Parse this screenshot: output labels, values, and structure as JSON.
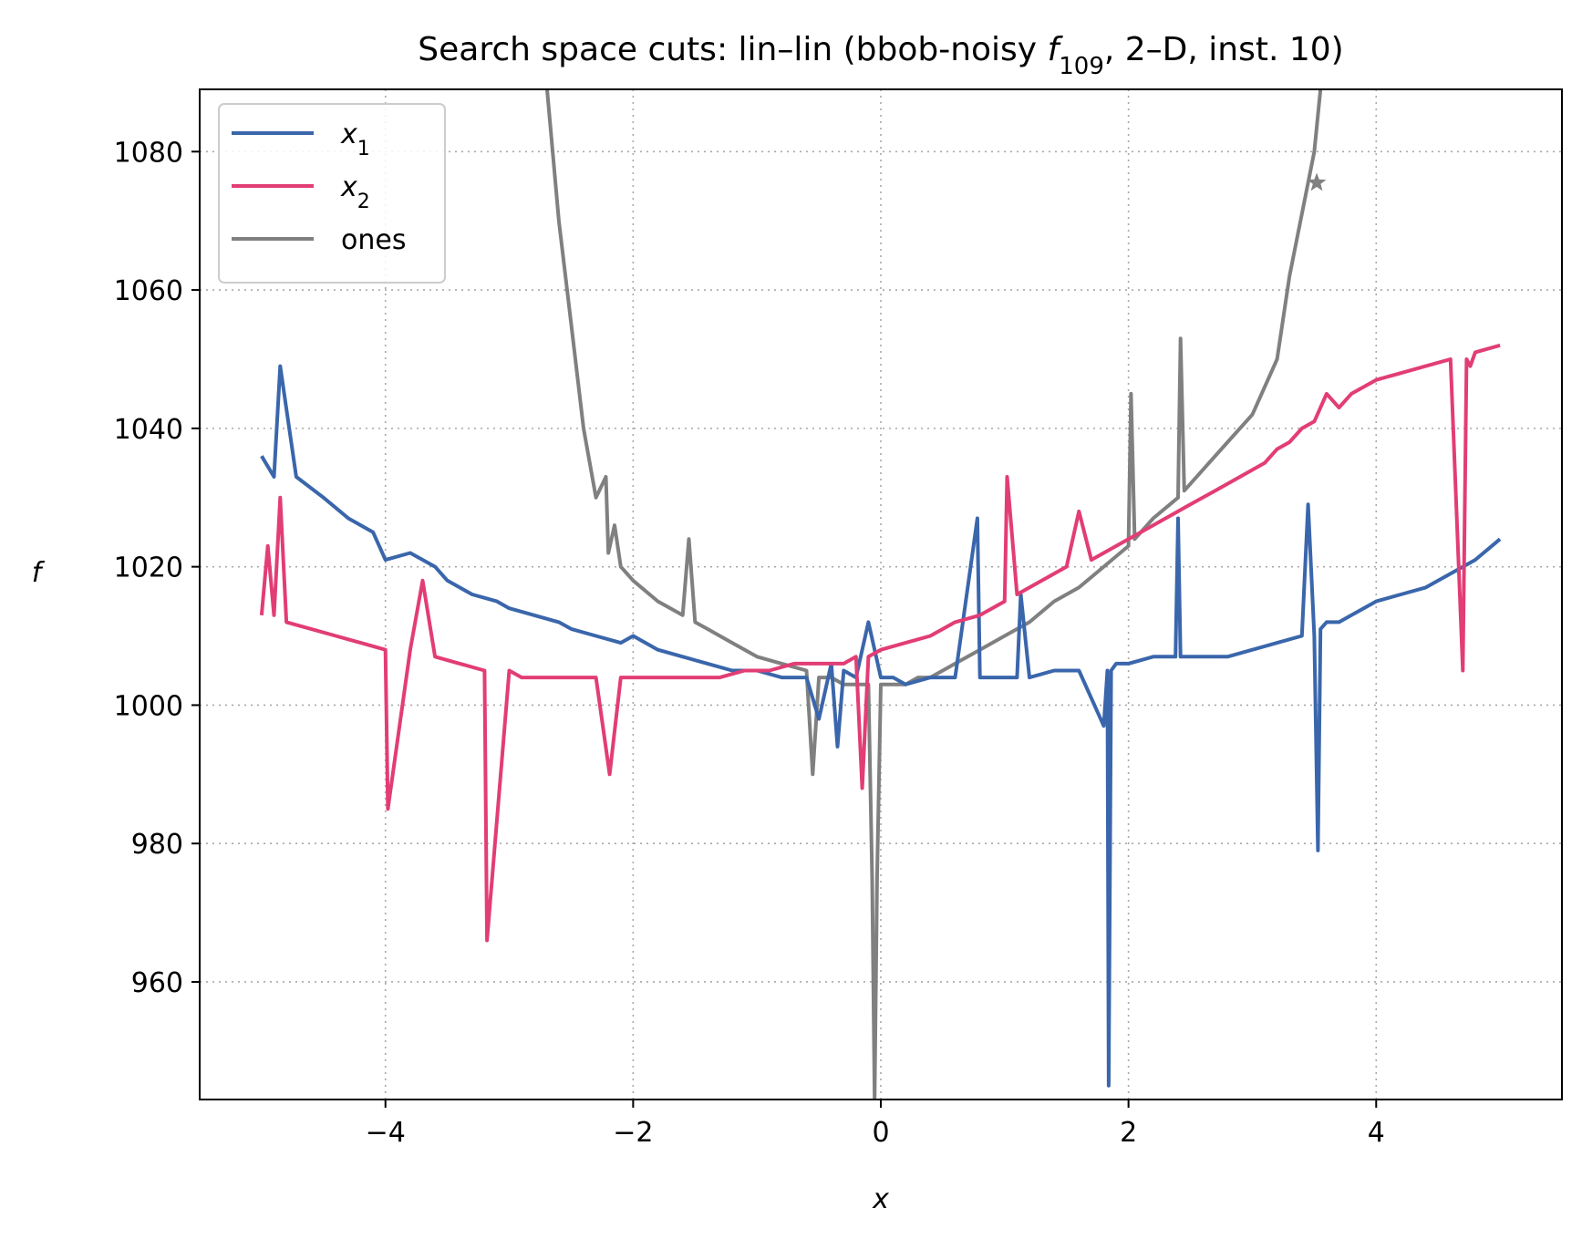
{
  "chart_data": {
    "type": "line",
    "title_prefix": "Search space cuts: lin–lin (bbob-noisy ",
    "title_f": "f",
    "title_sub": "109",
    "title_suffix": ", 2–D, inst. 10)",
    "xlabel": "x",
    "ylabel": "f",
    "xlim": [
      -5.5,
      5.5
    ],
    "ylim": [
      943,
      1089
    ],
    "xticks": [
      -4,
      -2,
      0,
      2,
      4
    ],
    "xtick_labels": [
      "−4",
      "−2",
      "0",
      "2",
      "4"
    ],
    "yticks": [
      960,
      980,
      1000,
      1020,
      1040,
      1060,
      1080
    ],
    "ytick_labels": [
      "960",
      "980",
      "1000",
      "1020",
      "1040",
      "1060",
      "1080"
    ],
    "grid": true,
    "legend_position": "top-left",
    "series": [
      {
        "name_main": "x",
        "name_sub": "1",
        "color": "#3a66ab",
        "base_min_x": 0.23,
        "base_min_y": 1003.5,
        "base_curvature": 1.1,
        "x": [
          -5.0,
          -4.9,
          -4.85,
          -4.72,
          -4.5,
          -4.3,
          -4.1,
          -4.0,
          -3.8,
          -3.6,
          -3.5,
          -3.3,
          -3.1,
          -3.0,
          -2.8,
          -2.6,
          -2.5,
          -2.3,
          -2.1,
          -2.0,
          -1.8,
          -1.6,
          -1.4,
          -1.2,
          -1.0,
          -0.8,
          -0.6,
          -0.5,
          -0.4,
          -0.35,
          -0.3,
          -0.2,
          -0.1,
          0.0,
          0.1,
          0.2,
          0.4,
          0.6,
          0.78,
          0.8,
          0.9,
          1.1,
          1.13,
          1.2,
          1.4,
          1.6,
          1.8,
          1.83,
          1.84,
          1.86,
          1.9,
          2.0,
          2.2,
          2.38,
          2.4,
          2.42,
          2.6,
          2.8,
          3.0,
          3.2,
          3.4,
          3.45,
          3.5,
          3.53,
          3.55,
          3.6,
          3.7,
          3.8,
          4.0,
          4.2,
          4.4,
          4.6,
          4.8,
          5.0
        ],
        "y": [
          1036,
          1033,
          1049,
          1033,
          1030,
          1027,
          1025,
          1021,
          1022,
          1020,
          1018,
          1016,
          1015,
          1014,
          1013,
          1012,
          1011,
          1010,
          1009,
          1010,
          1008,
          1007,
          1006,
          1005,
          1005,
          1004,
          1004,
          998,
          1006,
          994,
          1005,
          1004,
          1012,
          1004,
          1004,
          1003,
          1004,
          1004,
          1027,
          1004,
          1004,
          1004,
          1016,
          1004,
          1005,
          1005,
          997,
          1005,
          945,
          1005,
          1006,
          1006,
          1007,
          1007,
          1027,
          1007,
          1007,
          1007,
          1008,
          1009,
          1010,
          1029,
          1010,
          979,
          1011,
          1012,
          1012,
          1013,
          1015,
          1016,
          1017,
          1019,
          1021,
          1024
        ]
      },
      {
        "name_main": "x",
        "name_sub": "2",
        "color": "#e23d75",
        "base_min_x": -1.6,
        "base_min_y": 1003.5,
        "base_curvature": 1.1,
        "x": [
          -5.0,
          -4.95,
          -4.9,
          -4.85,
          -4.8,
          -4.6,
          -4.4,
          -4.2,
          -4.0,
          -3.98,
          -3.8,
          -3.7,
          -3.6,
          -3.4,
          -3.2,
          -3.18,
          -3.0,
          -2.9,
          -2.7,
          -2.5,
          -2.3,
          -2.19,
          -2.1,
          -1.9,
          -1.7,
          -1.5,
          -1.3,
          -1.1,
          -0.9,
          -0.7,
          -0.5,
          -0.3,
          -0.2,
          -0.15,
          -0.1,
          0.0,
          0.2,
          0.4,
          0.6,
          0.8,
          1.0,
          1.02,
          1.1,
          1.3,
          1.5,
          1.6,
          1.7,
          1.9,
          2.1,
          2.3,
          2.5,
          2.7,
          2.9,
          3.1,
          3.2,
          3.3,
          3.4,
          3.5,
          3.6,
          3.7,
          3.8,
          4.0,
          4.2,
          4.4,
          4.6,
          4.7,
          4.73,
          4.76,
          4.8,
          5.0
        ],
        "y": [
          1013,
          1023,
          1013,
          1030,
          1012,
          1011,
          1010,
          1009,
          1008,
          985,
          1008,
          1018,
          1007,
          1006,
          1005,
          966,
          1005,
          1004,
          1004,
          1004,
          1004,
          990,
          1004,
          1004,
          1004,
          1004,
          1004,
          1005,
          1005,
          1006,
          1006,
          1006,
          1007,
          988,
          1007,
          1008,
          1009,
          1010,
          1012,
          1013,
          1015,
          1033,
          1016,
          1018,
          1020,
          1028,
          1021,
          1023,
          1025,
          1027,
          1029,
          1031,
          1033,
          1035,
          1037,
          1038,
          1040,
          1041,
          1045,
          1043,
          1045,
          1047,
          1048,
          1049,
          1050,
          1005,
          1050,
          1049,
          1051,
          1052
        ]
      },
      {
        "name_main": "ones",
        "name_sub": "",
        "color": "#808080",
        "base_min_x": 0.0,
        "base_min_y": 1003.5,
        "base_curvature": 1.0,
        "x": [
          -2.7,
          -2.6,
          -2.5,
          -2.4,
          -2.3,
          -2.22,
          -2.2,
          -2.15,
          -2.1,
          -2.0,
          -1.8,
          -1.6,
          -1.55,
          -1.5,
          -1.4,
          -1.2,
          -1.0,
          -0.8,
          -0.6,
          -0.55,
          -0.5,
          -0.4,
          -0.3,
          -0.2,
          -0.1,
          -0.07,
          -0.05,
          -0.03,
          0.0,
          0.1,
          0.2,
          0.3,
          0.4,
          0.5,
          0.6,
          0.8,
          1.0,
          1.2,
          1.4,
          1.6,
          1.8,
          2.0,
          2.02,
          2.05,
          2.2,
          2.4,
          2.42,
          2.45,
          2.6,
          2.8,
          3.0,
          3.2,
          3.3,
          3.4,
          3.5,
          3.55,
          3.6
        ],
        "y": [
          1090,
          1070,
          1055,
          1040,
          1030,
          1033,
          1022,
          1026,
          1020,
          1018,
          1015,
          1013,
          1024,
          1012,
          1011,
          1009,
          1007,
          1006,
          1005,
          990,
          1004,
          1004,
          1003,
          1003,
          1003,
          975,
          943,
          975,
          1003,
          1003,
          1003,
          1004,
          1004,
          1005,
          1006,
          1008,
          1010,
          1012,
          1015,
          1017,
          1020,
          1023,
          1045,
          1024,
          1027,
          1030,
          1053,
          1031,
          1034,
          1038,
          1042,
          1050,
          1062,
          1071,
          1080,
          1089,
          1100
        ]
      }
    ],
    "marker": {
      "x": 3.52,
      "y": 1075.5,
      "shape": "star",
      "color": "#808080"
    }
  }
}
